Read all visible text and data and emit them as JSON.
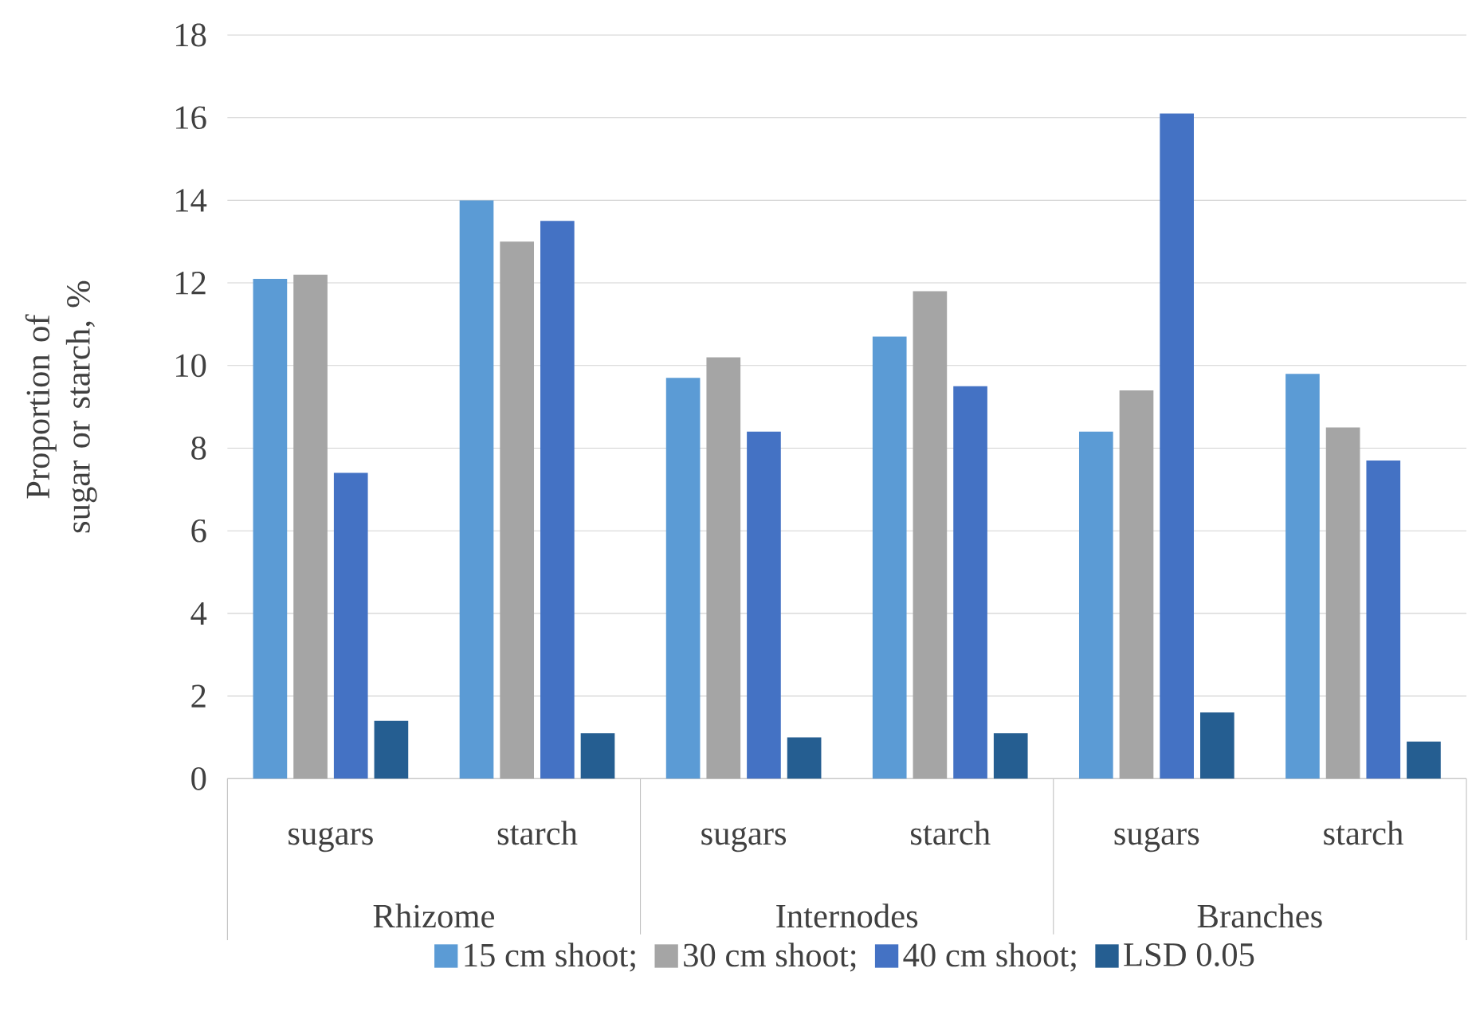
{
  "chart_data": {
    "type": "bar",
    "ylabel": "Proportion of sugar or starch, %",
    "categories": [
      "sugars",
      "starch",
      "sugars",
      "starch",
      "sugars",
      "starch"
    ],
    "annotations": [
      "Rhizome",
      "Internodes",
      "Branches"
    ],
    "series": [
      {
        "name": "15 cm shoot;",
        "color": "#5b9bd5",
        "values": [
          12.1,
          14.0,
          9.7,
          10.7,
          8.4,
          9.8
        ]
      },
      {
        "name": "30 cm shoot;",
        "color": "#a5a5a5",
        "values": [
          12.2,
          13.0,
          10.2,
          11.8,
          9.4,
          8.5
        ]
      },
      {
        "name": "40 cm shoot;",
        "color": "#4472c4",
        "values": [
          7.4,
          13.5,
          8.4,
          9.5,
          16.1,
          7.7
        ]
      },
      {
        "name": "LSD 0.05",
        "color": "#255e91",
        "values": [
          1.4,
          1.1,
          1.0,
          1.1,
          1.6,
          0.9
        ]
      }
    ],
    "ylim": [
      0,
      18
    ],
    "yticks": [
      0,
      2,
      4,
      6,
      8,
      10,
      12,
      14,
      16,
      18
    ],
    "grid": "y",
    "legend": "bottom"
  }
}
